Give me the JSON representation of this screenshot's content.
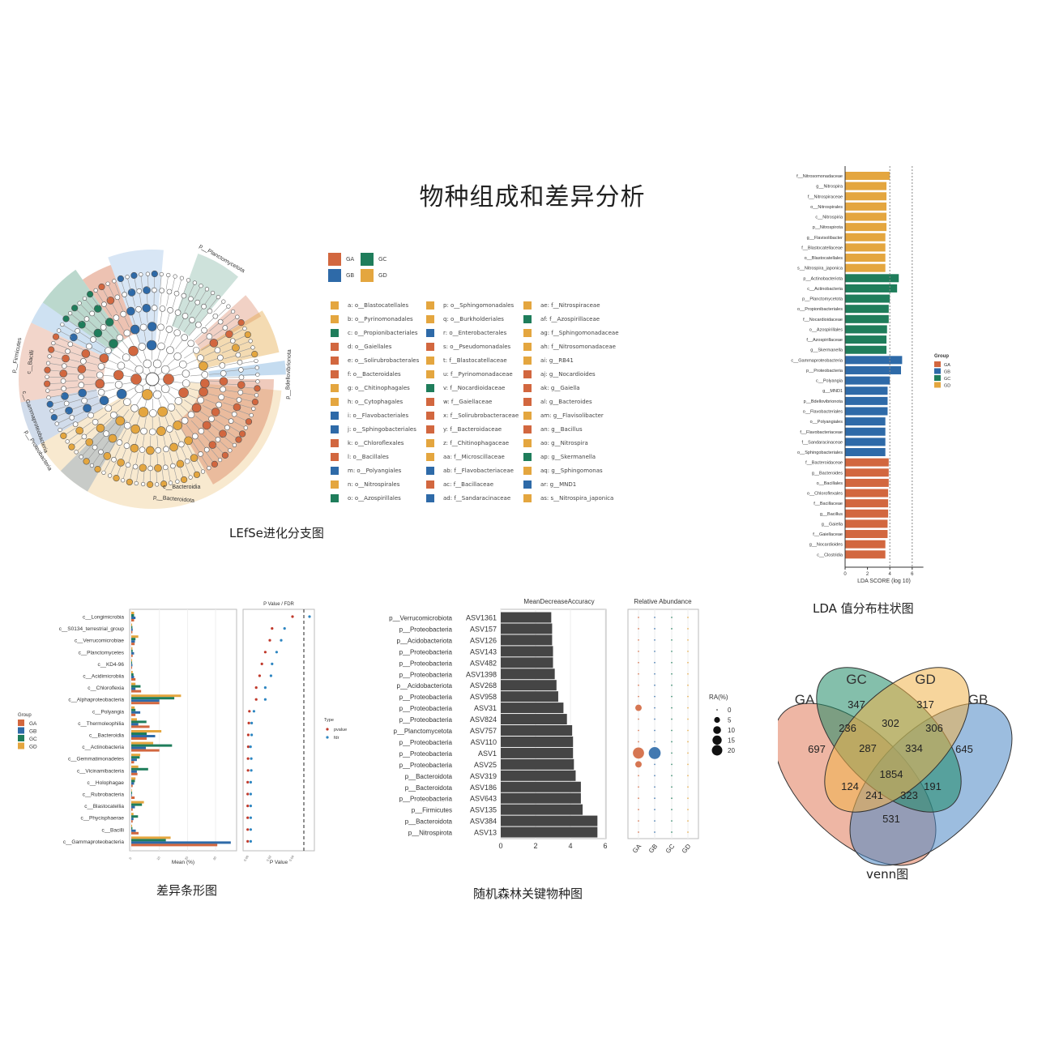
{
  "title": "物种组成和差异分析",
  "colors": {
    "GA": "#d2673f",
    "GB": "#2e6aa8",
    "GC": "#1f7d5b",
    "GD": "#e4a63f"
  },
  "cladogram": {
    "caption": "LEfSe进化分支图",
    "groups": [
      "GA",
      "GC",
      "GB",
      "GD"
    ],
    "clade_labels": [
      "p__Planctomycetota",
      "p__Bdellovibrionota",
      "c__Bacteroidia",
      "p__Bacteroidota",
      "p__Firmicutes",
      "c__Bacilli",
      "p__Proteobacteria",
      "c__Gammaproteobacteria"
    ],
    "legend": [
      {
        "label": "a: o__Blastocatellales",
        "group": "GD"
      },
      {
        "label": "b: o__Pyrinomonadales",
        "group": "GD"
      },
      {
        "label": "c: o__Propionibacteriales",
        "group": "GC"
      },
      {
        "label": "d: o__Gaiellales",
        "group": "GA"
      },
      {
        "label": "e: o__Solirubrobacterales",
        "group": "GA"
      },
      {
        "label": "f: o__Bacteroidales",
        "group": "GA"
      },
      {
        "label": "g: o__Chitinophagales",
        "group": "GD"
      },
      {
        "label": "h: o__Cytophagales",
        "group": "GD"
      },
      {
        "label": "i: o__Flavobacteriales",
        "group": "GB"
      },
      {
        "label": "j: o__Sphingobacteriales",
        "group": "GB"
      },
      {
        "label": "k: o__Chloroflexales",
        "group": "GA"
      },
      {
        "label": "l: o__Bacillales",
        "group": "GA"
      },
      {
        "label": "m: o__Polyangiales",
        "group": "GB"
      },
      {
        "label": "n: o__Nitrospirales",
        "group": "GD"
      },
      {
        "label": "o: o__Azospirillales",
        "group": "GC"
      },
      {
        "label": "p: o__Sphingomonadales",
        "group": "GD"
      },
      {
        "label": "q: o__Burkholderiales",
        "group": "GD"
      },
      {
        "label": "r: o__Enterobacterales",
        "group": "GB"
      },
      {
        "label": "s: o__Pseudomonadales",
        "group": "GA"
      },
      {
        "label": "t: f__Blastocatellaceae",
        "group": "GD"
      },
      {
        "label": "u: f__Pyrinomonadaceae",
        "group": "GD"
      },
      {
        "label": "v: f__Nocardioidaceae",
        "group": "GC"
      },
      {
        "label": "w: f__Gaiellaceae",
        "group": "GA"
      },
      {
        "label": "x: f__Solirubrobacteraceae",
        "group": "GA"
      },
      {
        "label": "y: f__Bacteroidaceae",
        "group": "GA"
      },
      {
        "label": "z: f__Chitinophagaceae",
        "group": "GD"
      },
      {
        "label": "aa: f__Microscillaceae",
        "group": "GD"
      },
      {
        "label": "ab: f__Flavobacteriaceae",
        "group": "GB"
      },
      {
        "label": "ac: f__Bacillaceae",
        "group": "GA"
      },
      {
        "label": "ad: f__Sandaracinaceae",
        "group": "GB"
      },
      {
        "label": "ae: f__Nitrospiraceae",
        "group": "GD"
      },
      {
        "label": "af: f__Azospirillaceae",
        "group": "GC"
      },
      {
        "label": "ag: f__Sphingomonadaceae",
        "group": "GD"
      },
      {
        "label": "ah: f__Nitrosomonadaceae",
        "group": "GD"
      },
      {
        "label": "ai: g__RB41",
        "group": "GD"
      },
      {
        "label": "aj: g__Nocardioides",
        "group": "GA"
      },
      {
        "label": "ak: g__Gaiella",
        "group": "GA"
      },
      {
        "label": "al: g__Bacteroides",
        "group": "GA"
      },
      {
        "label": "am: g__Flavisolibacter",
        "group": "GD"
      },
      {
        "label": "an: g__Bacillus",
        "group": "GA"
      },
      {
        "label": "ao: g__Nitrospira",
        "group": "GD"
      },
      {
        "label": "ap: g__Skermanella",
        "group": "GC"
      },
      {
        "label": "aq: g__Sphingomonas",
        "group": "GD"
      },
      {
        "label": "ar: g__MND1",
        "group": "GB"
      },
      {
        "label": "as: s__Nitrospira_japonica",
        "group": "GD"
      }
    ]
  },
  "chart_data": [
    {
      "type": "bar",
      "id": "lda",
      "caption": "LDA 值分布柱状图",
      "xlabel": "LDA SCORE (log 10)",
      "xticks": [
        0,
        2,
        4,
        6
      ],
      "xlim": [
        0,
        7
      ],
      "legend_title": "Group",
      "legend": [
        "GA",
        "GB",
        "GC",
        "GD"
      ],
      "legend_position": "right",
      "categories": [
        "f__Nitrosomonadaceae",
        "g__Nitrospira",
        "f__Nitrospiraceae",
        "o__Nitrospirales",
        "c__Nitrospiria",
        "p__Nitrospirota",
        "g__Flavisolibacter",
        "f__Blastocatellaceae",
        "o__Blastocatellales",
        "s__Nitrospira_japonica",
        "p__Actinobacteriota",
        "c__Actinobacteria",
        "p__Planctomycetota",
        "o__Propionibacteriales",
        "f__Nocardioidaceae",
        "o__Azospirillales",
        "f__Azospirillaceae",
        "g__Skermanella",
        "c__Gammaproteobacteria",
        "p__Proteobacteria",
        "c__Polyangia",
        "g__MND1",
        "p__Bdellovibrionota",
        "o__Flavobacteriales",
        "o__Polyangiales",
        "f__Flavobacteriaceae",
        "f__Sandaracinaceae",
        "o__Sphingobacteriales",
        "f__Bacteroidaceae",
        "g__Bacteroides",
        "o__Bacillales",
        "o__Chloroflexales",
        "f__Bacillaceae",
        "g__Bacillus",
        "g__Gaiella",
        "f__Gaiellaceae",
        "g__Nocardioides",
        "c__Clostridia"
      ],
      "groups": [
        "GD",
        "GD",
        "GD",
        "GD",
        "GD",
        "GD",
        "GD",
        "GD",
        "GD",
        "GD",
        "GC",
        "GC",
        "GC",
        "GC",
        "GC",
        "GC",
        "GC",
        "GC",
        "GB",
        "GB",
        "GB",
        "GB",
        "GB",
        "GB",
        "GB",
        "GB",
        "GB",
        "GB",
        "GA",
        "GA",
        "GA",
        "GA",
        "GA",
        "GA",
        "GA",
        "GA",
        "GA",
        "GA"
      ],
      "values": [
        4.0,
        3.7,
        3.7,
        3.7,
        3.7,
        3.7,
        3.6,
        3.6,
        3.6,
        3.6,
        4.8,
        4.65,
        4.0,
        3.9,
        3.9,
        3.75,
        3.7,
        3.7,
        5.1,
        5.0,
        4.0,
        3.8,
        3.8,
        3.8,
        3.6,
        3.6,
        3.6,
        3.6,
        3.9,
        3.9,
        3.9,
        3.85,
        3.85,
        3.85,
        3.8,
        3.8,
        3.6,
        3.6
      ],
      "reference_lines": [
        4,
        6
      ]
    },
    {
      "type": "bar",
      "id": "rf",
      "caption": "随机森林关键物种图",
      "title": "MeanDecreaseAccuracy",
      "xticks": [
        0,
        2,
        4,
        6
      ],
      "xlim": [
        0,
        6.5
      ],
      "asv": [
        "ASV1361",
        "ASV157",
        "ASV126",
        "ASV143",
        "ASV482",
        "ASV1398",
        "ASV268",
        "ASV958",
        "ASV31",
        "ASV824",
        "ASV757",
        "ASV110",
        "ASV1",
        "ASV25",
        "ASV319",
        "ASV186",
        "ASV643",
        "ASV135",
        "ASV384",
        "ASV13"
      ],
      "phylum": [
        "p__Verrucomicrobiota",
        "p__Proteobacteria",
        "p__Acidobacteriota",
        "p__Proteobacteria",
        "p__Proteobacteria",
        "p__Proteobacteria",
        "p__Acidobacteriota",
        "p__Proteobacteria",
        "p__Proteobacteria",
        "p__Proteobacteria",
        "p__Planctomycetota",
        "p__Proteobacteria",
        "p__Proteobacteria",
        "p__Proteobacteria",
        "p__Bacteroidota",
        "p__Bacteroidota",
        "p__Proteobacteria",
        "p__Firmicutes",
        "p__Bacteroidota",
        "p__Nitrospirota"
      ],
      "values": [
        2.9,
        2.95,
        2.95,
        3.0,
        3.0,
        3.1,
        3.2,
        3.3,
        3.6,
        3.8,
        4.1,
        4.15,
        4.15,
        4.2,
        4.3,
        4.6,
        4.6,
        4.7,
        5.55,
        5.55
      ],
      "ra_title": "Relative Abundance",
      "ra_groups": [
        "GA",
        "GB",
        "GC",
        "GD"
      ],
      "ra_legend_title": "RA(%)",
      "ra_legend": [
        0,
        5,
        10,
        15,
        20
      ],
      "ra_values": [
        [
          0.2,
          0.2,
          0.2,
          0.2
        ],
        [
          0.2,
          0.2,
          0.3,
          0.2
        ],
        [
          0.2,
          0.3,
          0.3,
          0.2
        ],
        [
          0.2,
          0.2,
          0.3,
          0.1
        ],
        [
          0.2,
          0.2,
          0.3,
          0.1
        ],
        [
          0.2,
          0.2,
          0.2,
          0.1
        ],
        [
          0.2,
          0.2,
          0.3,
          0.1
        ],
        [
          0.2,
          0.2,
          0.2,
          0.1
        ],
        [
          3,
          0.2,
          0.2,
          0.1
        ],
        [
          0.2,
          0.2,
          0.2,
          0.1
        ],
        [
          0.1,
          0.2,
          0.2,
          0.1
        ],
        [
          0.8,
          0.2,
          0.2,
          0.1
        ],
        [
          12,
          14,
          0.2,
          0.1
        ],
        [
          3,
          0.3,
          0.2,
          0.1
        ],
        [
          0.2,
          0.2,
          0.2,
          0.1
        ],
        [
          0.2,
          0.2,
          0.2,
          0.1
        ],
        [
          0.2,
          0.2,
          0.2,
          0.1
        ],
        [
          0.8,
          0.2,
          0.2,
          0.1
        ],
        [
          0.2,
          0.3,
          0.2,
          0.1
        ],
        [
          0.3,
          0.4,
          0.6,
          0.6
        ]
      ]
    },
    {
      "type": "bar",
      "id": "diff",
      "caption": "差异条形图",
      "xlabel": "Mean (%)",
      "xticks": [
        0,
        10,
        20,
        30
      ],
      "xlim": [
        0,
        37
      ],
      "legend_title": "Group",
      "legend": [
        "GA",
        "GB",
        "GC",
        "GD"
      ],
      "legend_position": "left",
      "categories": [
        "c__Longimicrobia",
        "c__S0134_terrestrial_group",
        "c__Verrucomicrobiae",
        "c__Planctomycetes",
        "c__KD4-96",
        "c__Acidimicrobiia",
        "c__Chloroflexia",
        "c__Alphaproteobacteria",
        "c__Polyangia",
        "c__Thermoleophilia",
        "c__Bacteroidia",
        "c__Actinobacteria",
        "c__Gemmatimonadetes",
        "c__Vicinamibacteria",
        "c__Holophagae",
        "c__Rubrobacteria",
        "c__Blastocatellia",
        "c__Phycisphaerae",
        "c__Bacilli",
        "c__Gammaproteobacteria"
      ],
      "series": [
        {
          "name": "GA",
          "values": [
            1.0,
            0.4,
            1.2,
            0.5,
            0.3,
            1.5,
            3.5,
            10,
            1.5,
            6.5,
            5.5,
            10,
            1.0,
            2.2,
            0.5,
            1.2,
            0.5,
            0.5,
            2.6,
            30.6
          ]
        },
        {
          "name": "GB",
          "values": [
            1.5,
            0.5,
            1.3,
            1.0,
            0.4,
            1.0,
            1.5,
            10,
            3.2,
            2.5,
            8.5,
            5.2,
            2.0,
            2.0,
            1.0,
            0.2,
            1.3,
            0.8,
            1.6,
            35.4
          ]
        },
        {
          "name": "GC",
          "values": [
            1.0,
            0.4,
            1.5,
            0.5,
            0.3,
            0.8,
            3.3,
            15.3,
            1.5,
            5.4,
            5.5,
            14.5,
            3.0,
            6.0,
            1.3,
            0.3,
            3.8,
            2.4,
            0.4,
            12.3
          ]
        },
        {
          "name": "GD",
          "values": [
            1.0,
            0.3,
            2.5,
            0.4,
            0.3,
            0.5,
            1.5,
            17.7,
            1.2,
            2.0,
            10.7,
            7.8,
            3.2,
            2.5,
            1.5,
            0.2,
            4.5,
            0.8,
            0.3,
            14.0
          ]
        }
      ],
      "p_title": "P Value / FDR",
      "p_xlabel": "P Value",
      "p_xticks": [
        "0.00",
        "0.02",
        "0.04"
      ],
      "p_xlim": [
        0,
        0.06
      ],
      "p_threshold": 0.05,
      "type_legend_title": "Type",
      "type_legend": [
        "pvalue",
        "fdr"
      ],
      "type_colors": {
        "pvalue": "#c0392b",
        "fdr": "#2e86c1"
      },
      "pvalue": [
        0.04,
        0.022,
        0.02,
        0.016,
        0.013,
        0.011,
        0.008,
        0.008,
        0.002,
        0.0015,
        0.001,
        0.001,
        0.0008,
        0.0008,
        0.0005,
        0.0005,
        0.0005,
        0.0005,
        0.0005,
        0.0005
      ],
      "fdr": [
        0.055,
        0.033,
        0.03,
        0.026,
        0.022,
        0.021,
        0.016,
        0.016,
        0.006,
        0.004,
        0.004,
        0.003,
        0.0015,
        0.0015,
        0.001,
        0.001,
        0.001,
        0.001,
        0.001,
        0.001
      ]
    },
    {
      "type": "venn",
      "id": "venn",
      "caption": "venn图",
      "sets": [
        "GA",
        "GC",
        "GD",
        "GB"
      ],
      "set_colors": {
        "GA": "#e07a5a",
        "GC": "#1f8a66",
        "GD": "#f0b34a",
        "GB": "#4a86c5"
      },
      "regions": [
        {
          "sets": [
            "GA"
          ],
          "count": 697
        },
        {
          "sets": [
            "GC"
          ],
          "count": 347
        },
        {
          "sets": [
            "GD"
          ],
          "count": 317
        },
        {
          "sets": [
            "GB"
          ],
          "count": 645
        },
        {
          "sets": [
            "GA",
            "GC"
          ],
          "count": 236
        },
        {
          "sets": [
            "GC",
            "GD"
          ],
          "count": 302
        },
        {
          "sets": [
            "GD",
            "GB"
          ],
          "count": 306
        },
        {
          "sets": [
            "GA",
            "GC",
            "GD"
          ],
          "count": 287
        },
        {
          "sets": [
            "GC",
            "GD",
            "GB"
          ],
          "count": 334
        },
        {
          "sets": [
            "GA",
            "GC",
            "GD",
            "GB"
          ],
          "count": 1854
        },
        {
          "sets": [
            "GA",
            "GD"
          ],
          "count": 124
        },
        {
          "sets": [
            "GC",
            "GB"
          ],
          "count": 191
        },
        {
          "sets": [
            "GA",
            "GD",
            "GB"
          ],
          "count": 241
        },
        {
          "sets": [
            "GA",
            "GC",
            "GB"
          ],
          "count": 323
        },
        {
          "sets": [
            "GA",
            "GB"
          ],
          "count": 531
        }
      ]
    }
  ]
}
